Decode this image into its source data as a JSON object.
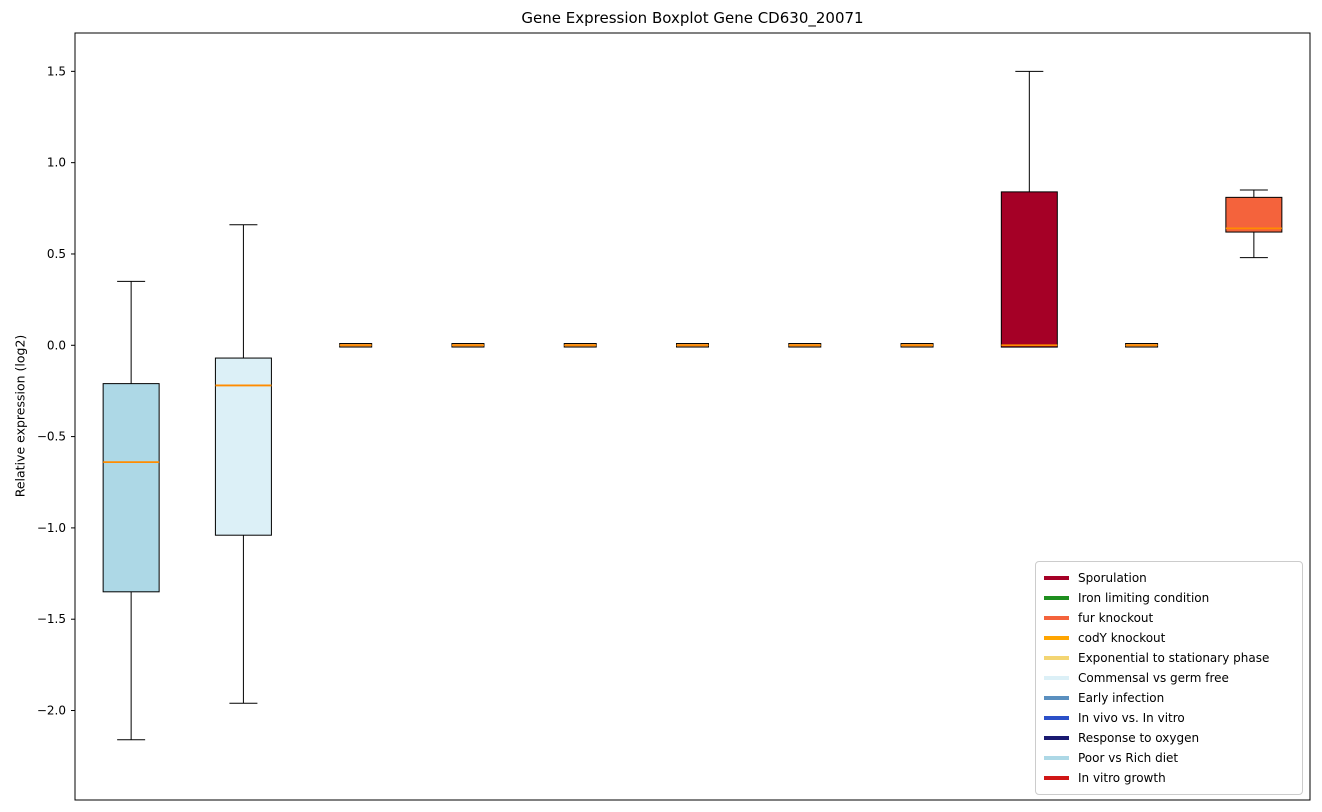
{
  "chart_data": {
    "type": "boxplot",
    "title": "Gene Expression Boxplot Gene CD630_20071",
    "xlabel": "",
    "ylabel": "Relative expression (log2)",
    "ylim": [
      -2.49,
      1.71
    ],
    "yticks": [
      1.5,
      1.0,
      0.5,
      0.0,
      -0.5,
      -1.0,
      -1.5,
      -2.0
    ],
    "grid": false,
    "median_color": "#FF8C00",
    "box_edge_color": "#000000",
    "boxes": [
      {
        "fill": "#ADD8E6",
        "whislo": -2.16,
        "q1": -1.35,
        "med": -0.64,
        "q3": -0.21,
        "whishi": 0.35
      },
      {
        "fill": "#DCF0F7",
        "whislo": -1.96,
        "q1": -1.04,
        "med": -0.22,
        "q3": -0.07,
        "whishi": 0.66
      },
      {
        "fill": "#F4A460",
        "whislo": 0,
        "q1": 0,
        "med": 0,
        "q3": 0,
        "whishi": 0
      },
      {
        "fill": "#F4A460",
        "whislo": 0,
        "q1": 0,
        "med": 0,
        "q3": 0,
        "whishi": 0
      },
      {
        "fill": "#F4A460",
        "whislo": 0,
        "q1": 0,
        "med": 0,
        "q3": 0,
        "whishi": 0
      },
      {
        "fill": "#F4A460",
        "whislo": 0,
        "q1": 0,
        "med": 0,
        "q3": 0,
        "whishi": 0
      },
      {
        "fill": "#F4A460",
        "whislo": 0,
        "q1": 0,
        "med": 0,
        "q3": 0,
        "whishi": 0
      },
      {
        "fill": "#F4A460",
        "whislo": 0,
        "q1": 0,
        "med": 0,
        "q3": 0,
        "whishi": 0
      },
      {
        "fill": "#A50026",
        "whislo": -0.01,
        "q1": -0.01,
        "med": 0.0,
        "q3": 0.84,
        "whishi": 1.5
      },
      {
        "fill": "#F4A460",
        "whislo": 0,
        "q1": 0,
        "med": 0,
        "q3": 0,
        "whishi": 0
      },
      {
        "fill": "#F4633C",
        "whislo": 0.48,
        "q1": 0.62,
        "med": 0.64,
        "q3": 0.81,
        "whishi": 0.85
      }
    ],
    "legend": {
      "position": "lower right",
      "entries": [
        {
          "label": "Sporulation",
          "color": "#A50026"
        },
        {
          "label": "Iron limiting condition",
          "color": "#1E8E1E"
        },
        {
          "label": "fur knockout",
          "color": "#F4633C"
        },
        {
          "label": "codY knockout",
          "color": "#FFA500"
        },
        {
          "label": "Exponential to stationary phase",
          "color": "#F3D573"
        },
        {
          "label": "Commensal vs germ free",
          "color": "#DCF0F7"
        },
        {
          "label": "Early infection",
          "color": "#5A8FBF"
        },
        {
          "label": "In vivo vs. In vitro",
          "color": "#2B50C8"
        },
        {
          "label": "Response to oxygen",
          "color": "#191970"
        },
        {
          "label": "Poor vs Rich diet",
          "color": "#ADD8E6"
        },
        {
          "label": "In vitro growth",
          "color": "#D01616"
        }
      ]
    }
  }
}
